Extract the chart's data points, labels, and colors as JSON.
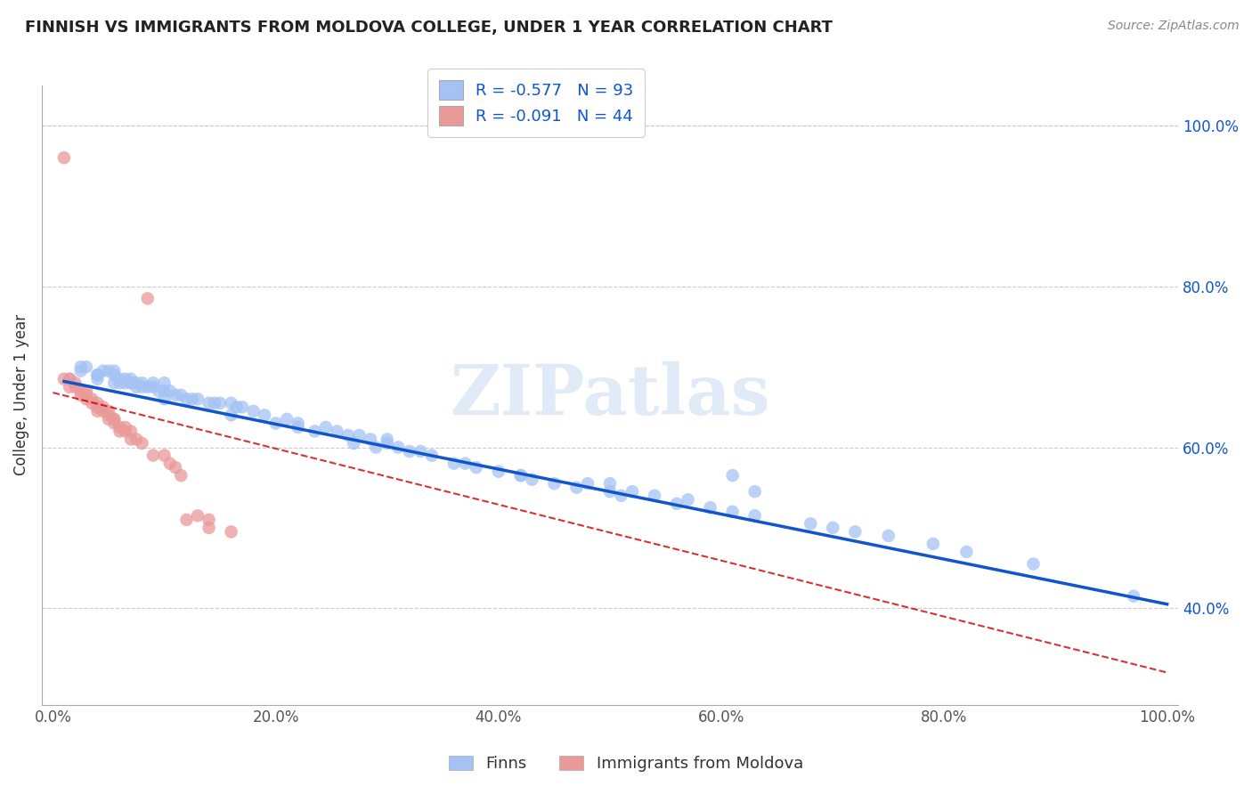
{
  "title": "FINNISH VS IMMIGRANTS FROM MOLDOVA COLLEGE, UNDER 1 YEAR CORRELATION CHART",
  "source": "Source: ZipAtlas.com",
  "ylabel": "College, Under 1 year",
  "xlabel": "",
  "legend_bottom": [
    "Finns",
    "Immigrants from Moldova"
  ],
  "finns_r": "-0.577",
  "finns_n": "93",
  "moldova_r": "-0.091",
  "moldova_n": "44",
  "xlim": [
    -0.01,
    1.01
  ],
  "ylim": [
    0.28,
    1.05
  ],
  "xticks": [
    0.0,
    0.2,
    0.4,
    0.6,
    0.8,
    1.0
  ],
  "xticklabels": [
    "0.0%",
    "20.0%",
    "40.0%",
    "60.0%",
    "80.0%",
    "100.0%"
  ],
  "yticks_right": [
    0.4,
    0.6,
    0.8,
    1.0
  ],
  "ytick_right_labels": [
    "40.0%",
    "60.0%",
    "80.0%",
    "100.0%"
  ],
  "blue_color": "#a4c2f4",
  "pink_color": "#ea9999",
  "blue_line_color": "#1155cc",
  "pink_line_color": "#cc0000",
  "background_color": "#ffffff",
  "grid_color": "#cccccc",
  "watermark_text": "ZIPatlas",
  "finns_x": [
    0.015,
    0.025,
    0.03,
    0.04,
    0.04,
    0.045,
    0.05,
    0.055,
    0.055,
    0.06,
    0.06,
    0.065,
    0.065,
    0.07,
    0.07,
    0.075,
    0.075,
    0.08,
    0.08,
    0.085,
    0.09,
    0.09,
    0.095,
    0.1,
    0.1,
    0.105,
    0.11,
    0.115,
    0.12,
    0.125,
    0.13,
    0.14,
    0.145,
    0.15,
    0.16,
    0.165,
    0.17,
    0.18,
    0.19,
    0.2,
    0.21,
    0.22,
    0.235,
    0.245,
    0.255,
    0.265,
    0.275,
    0.285,
    0.29,
    0.3,
    0.3,
    0.31,
    0.32,
    0.33,
    0.34,
    0.36,
    0.37,
    0.38,
    0.4,
    0.42,
    0.43,
    0.45,
    0.47,
    0.48,
    0.5,
    0.51,
    0.52,
    0.54,
    0.56,
    0.57,
    0.59,
    0.61,
    0.63,
    0.68,
    0.7,
    0.72,
    0.75,
    0.79,
    0.82,
    0.88,
    0.97,
    0.61,
    0.63,
    0.5,
    0.42,
    0.27,
    0.22,
    0.16,
    0.1,
    0.07,
    0.055,
    0.04,
    0.025
  ],
  "finns_y": [
    0.685,
    0.695,
    0.7,
    0.685,
    0.69,
    0.695,
    0.695,
    0.695,
    0.69,
    0.685,
    0.68,
    0.68,
    0.685,
    0.685,
    0.68,
    0.68,
    0.675,
    0.68,
    0.675,
    0.675,
    0.675,
    0.68,
    0.67,
    0.67,
    0.68,
    0.67,
    0.665,
    0.665,
    0.66,
    0.66,
    0.66,
    0.655,
    0.655,
    0.655,
    0.655,
    0.65,
    0.65,
    0.645,
    0.64,
    0.63,
    0.635,
    0.63,
    0.62,
    0.625,
    0.62,
    0.615,
    0.615,
    0.61,
    0.6,
    0.61,
    0.605,
    0.6,
    0.595,
    0.595,
    0.59,
    0.58,
    0.58,
    0.575,
    0.57,
    0.565,
    0.56,
    0.555,
    0.55,
    0.555,
    0.545,
    0.54,
    0.545,
    0.54,
    0.53,
    0.535,
    0.525,
    0.52,
    0.515,
    0.505,
    0.5,
    0.495,
    0.49,
    0.48,
    0.47,
    0.455,
    0.415,
    0.565,
    0.545,
    0.555,
    0.565,
    0.605,
    0.625,
    0.64,
    0.66,
    0.68,
    0.68,
    0.69,
    0.7
  ],
  "moldova_x": [
    0.01,
    0.01,
    0.015,
    0.015,
    0.02,
    0.02,
    0.025,
    0.025,
    0.03,
    0.03,
    0.03,
    0.035,
    0.035,
    0.04,
    0.04,
    0.04,
    0.04,
    0.045,
    0.045,
    0.05,
    0.05,
    0.05,
    0.055,
    0.055,
    0.055,
    0.06,
    0.06,
    0.065,
    0.065,
    0.07,
    0.07,
    0.075,
    0.08,
    0.085,
    0.09,
    0.1,
    0.105,
    0.11,
    0.115,
    0.12,
    0.13,
    0.14,
    0.14,
    0.16
  ],
  "moldova_y": [
    0.96,
    0.685,
    0.685,
    0.675,
    0.68,
    0.675,
    0.67,
    0.665,
    0.665,
    0.67,
    0.66,
    0.66,
    0.655,
    0.655,
    0.65,
    0.65,
    0.645,
    0.65,
    0.645,
    0.645,
    0.64,
    0.635,
    0.635,
    0.63,
    0.635,
    0.625,
    0.62,
    0.625,
    0.62,
    0.62,
    0.61,
    0.61,
    0.605,
    0.785,
    0.59,
    0.59,
    0.58,
    0.575,
    0.565,
    0.51,
    0.515,
    0.51,
    0.5,
    0.495
  ],
  "finns_line_x": [
    0.01,
    1.0
  ],
  "finns_line_y": [
    0.682,
    0.405
  ],
  "moldova_line_x": [
    0.0,
    1.0
  ],
  "moldova_line_y": [
    0.668,
    0.32
  ]
}
